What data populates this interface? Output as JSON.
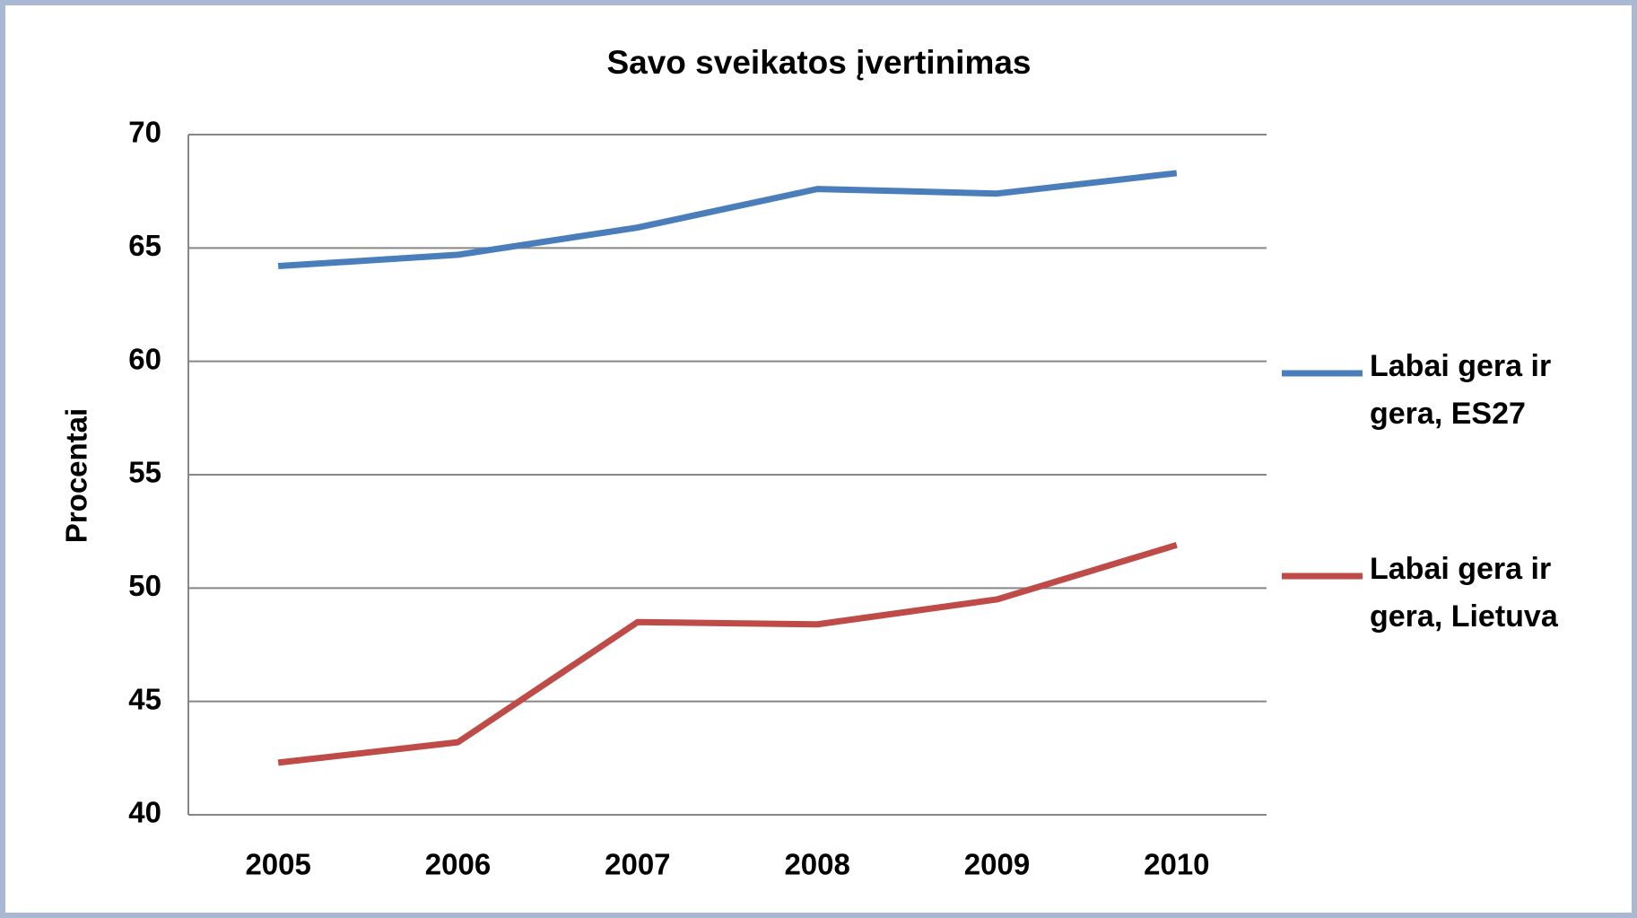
{
  "chart_data": {
    "type": "line",
    "title": "Savo sveikatos įvertinimas",
    "y_label": "Procentai",
    "categories": [
      "2005",
      "2006",
      "2007",
      "2008",
      "2009",
      "2010"
    ],
    "series": [
      {
        "name": "Labai gera ir gera, ES27",
        "color": "#4a7ebb",
        "values": [
          64.2,
          64.7,
          65.9,
          67.6,
          67.4,
          68.3
        ]
      },
      {
        "name": "Labai gera ir gera, Lietuva",
        "color": "#be4b48",
        "values": [
          42.3,
          43.2,
          48.5,
          48.4,
          49.5,
          51.9
        ]
      }
    ],
    "ylim": [
      40,
      70
    ],
    "yticks": [
      40,
      45,
      50,
      55,
      60,
      65,
      70
    ],
    "grid": true,
    "legend": "right"
  }
}
